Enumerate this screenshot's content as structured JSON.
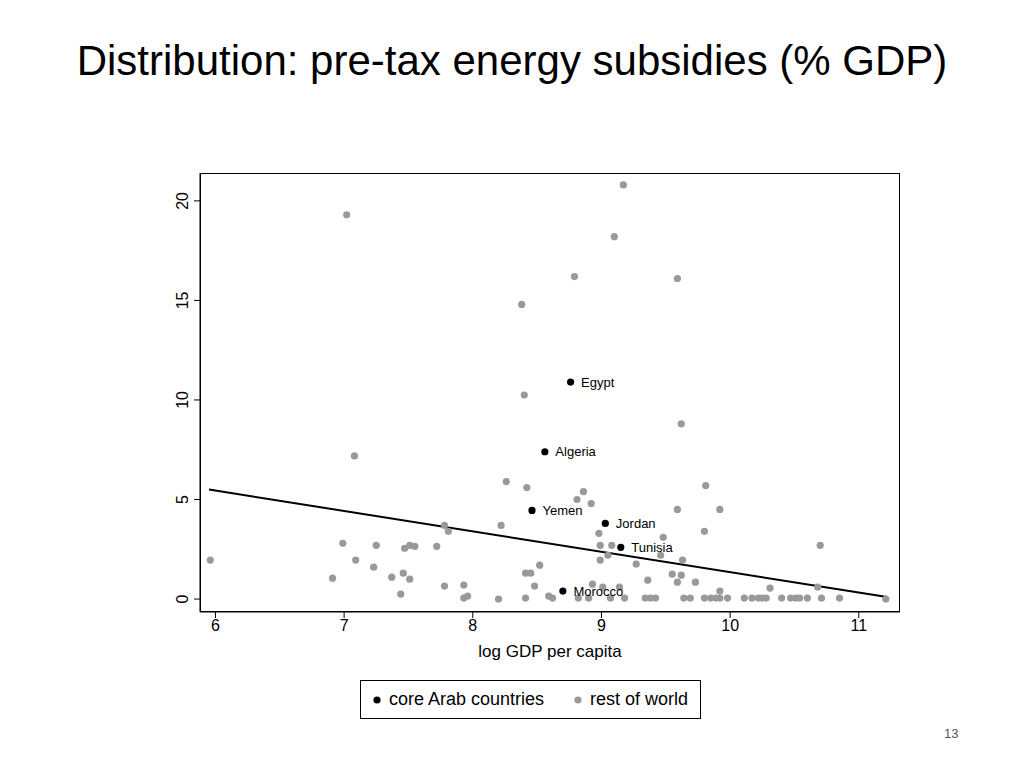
{
  "chart_data": {
    "type": "scatter",
    "title": "Distribution: pre-tax energy subsidies (% GDP)",
    "x_label": "log GDP per capita",
    "page_number": "13",
    "xlim": [
      5.88,
      11.32
    ],
    "ylim": [
      -0.65,
      21.4
    ],
    "xticks": [
      6,
      7,
      8,
      9,
      10,
      11
    ],
    "yticks": [
      0,
      5,
      10,
      15,
      20
    ],
    "legend": "bottom",
    "marker": "circle",
    "series": [
      {
        "name": "core Arab countries",
        "color": "#000000",
        "x": [
          8.76,
          8.56,
          8.46,
          9.03,
          9.15,
          8.7
        ],
        "values": [
          10.9,
          7.4,
          4.45,
          3.8,
          2.6,
          0.4
        ],
        "labels": [
          "Egypt",
          "Algeria",
          "Yemen",
          "Jordan",
          "Tunisia",
          "Morocco"
        ]
      },
      {
        "name": "rest of world",
        "color": "#999999",
        "x": [
          5.96,
          7.02,
          7.08,
          6.99,
          6.91,
          7.09,
          7.25,
          7.23,
          7.37,
          7.46,
          7.44,
          7.47,
          7.51,
          7.51,
          7.55,
          7.72,
          7.78,
          7.81,
          7.78,
          7.93,
          7.93,
          7.96,
          8.2,
          8.38,
          8.4,
          8.26,
          8.42,
          8.22,
          8.41,
          8.45,
          8.52,
          8.48,
          8.41,
          8.79,
          9.17,
          9.1,
          9.59,
          9.62,
          8.81,
          8.86,
          8.92,
          8.98,
          8.99,
          9.08,
          9.05,
          8.99,
          8.93,
          9.01,
          8.59,
          8.62,
          8.82,
          8.9,
          9.07,
          9.18,
          9.14,
          9.27,
          9.34,
          9.36,
          9.38,
          9.42,
          9.48,
          9.46,
          9.55,
          9.59,
          9.59,
          9.62,
          9.63,
          9.64,
          9.69,
          9.73,
          9.8,
          9.85,
          9.89,
          9.92,
          9.81,
          9.92,
          9.8,
          9.92,
          9.98,
          10.11,
          10.17,
          10.22,
          10.25,
          10.28,
          10.31,
          10.4,
          10.47,
          10.51,
          10.54,
          10.6,
          10.68,
          10.71,
          10.7,
          10.85,
          11.21
        ],
        "values": [
          1.96,
          19.3,
          7.19,
          2.8,
          1.05,
          1.96,
          2.7,
          1.6,
          1.1,
          1.3,
          0.25,
          2.55,
          2.7,
          1.0,
          2.65,
          2.65,
          3.7,
          3.4,
          0.65,
          0.7,
          0.05,
          0.15,
          0,
          14.8,
          10.25,
          5.9,
          5.6,
          3.7,
          1.3,
          1.3,
          1.7,
          0.65,
          0.05,
          16.2,
          20.8,
          18.2,
          16.1,
          8.8,
          5.0,
          5.4,
          4.8,
          3.3,
          2.7,
          2.7,
          2.2,
          1.96,
          0.75,
          0.6,
          0.15,
          0.05,
          0.05,
          0.05,
          0.05,
          0.05,
          0.6,
          1.76,
          0.05,
          0.95,
          0.05,
          0.05,
          3.1,
          2.2,
          1.25,
          4.5,
          0.85,
          1.2,
          1.96,
          0.05,
          0.05,
          0.85,
          0.05,
          0.05,
          0.05,
          0.05,
          5.7,
          4.5,
          3.4,
          0.4,
          0.05,
          0.05,
          0.05,
          0.05,
          0.05,
          0.05,
          0.55,
          0.05,
          0.05,
          0.05,
          0.05,
          0.05,
          0.6,
          0.05,
          2.7,
          0.05,
          0
        ]
      },
      {
        "type": "line",
        "color": "#000000",
        "x": [
          5.95,
          11.22
        ],
        "values": [
          5.5,
          0.1
        ]
      }
    ]
  }
}
